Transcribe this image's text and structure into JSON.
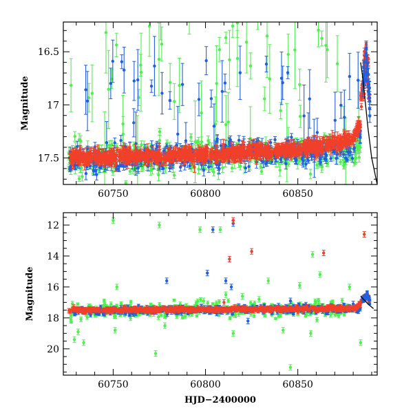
{
  "chart_data": [
    {
      "type": "scatter",
      "panel": "top",
      "title": "",
      "xlabel": "",
      "ylabel": "Magnitude",
      "xlim": [
        60723,
        60893
      ],
      "ylim": [
        17.75,
        16.22
      ],
      "y_inverted": true,
      "x_ticks": [
        60750,
        60800,
        60850
      ],
      "y_ticks": [
        16.5,
        17,
        17.5
      ],
      "x_tick_labels": [
        "60750",
        "60800",
        "60850"
      ],
      "y_tick_labels": [
        "16.5",
        "17",
        "17.5"
      ],
      "series": [
        {
          "color": "#4ef04e",
          "baseline": [
            [
              60726,
              17.52
            ],
            [
              60880,
              17.45
            ],
            [
              60884,
              17.38
            ]
          ],
          "scatter": 0.08,
          "outlier_frac": 0.16
        },
        {
          "color": "#1f5fe0",
          "baseline": [
            [
              60726,
              17.52
            ],
            [
              60880,
              17.42
            ],
            [
              60884,
              17.28
            ]
          ],
          "scatter": 0.06,
          "outlier_frac": 0.1
        },
        {
          "color": "#f0402a",
          "baseline": [
            [
              60726,
              17.5
            ],
            [
              60800,
              17.47
            ],
            [
              60860,
              17.4
            ],
            [
              60880,
              17.32
            ],
            [
              60884,
              17.18
            ]
          ],
          "scatter": 0.03,
          "outlier_frac": 0.0
        }
      ],
      "flare": {
        "x": [
          60884,
          60886,
          60887,
          60888,
          60889
        ],
        "y": [
          17.0,
          16.7,
          16.55,
          16.7,
          16.95
        ]
      },
      "model_curve": {
        "color": "#000000",
        "x": [
          60884,
          60885,
          60886,
          60887,
          60888,
          60890,
          60893
        ],
        "y": [
          16.6,
          16.72,
          16.88,
          17.05,
          17.22,
          17.5,
          17.75
        ]
      }
    },
    {
      "type": "scatter",
      "panel": "bottom",
      "title": "",
      "xlabel": "HJD−2400000",
      "ylabel": "Magnitude",
      "xlim": [
        60723,
        60893
      ],
      "ylim": [
        21.7,
        11.2
      ],
      "y_inverted": true,
      "x_ticks": [
        60750,
        60800,
        60850
      ],
      "y_ticks": [
        12,
        14,
        16,
        18,
        20
      ],
      "x_tick_labels": [
        "60750",
        "60800",
        "60850"
      ],
      "y_tick_labels": [
        "12",
        "14",
        "16",
        "18",
        "20"
      ],
      "series": [
        {
          "color": "#4ef04e",
          "baseline": [
            [
              60726,
              17.55
            ],
            [
              60884,
              17.4
            ]
          ],
          "scatter": 0.25,
          "outliers": [
            [
              60729,
              19.4
            ],
            [
              60731,
              18.9
            ],
            [
              60734,
              19.6
            ],
            [
              60750,
              11.7
            ],
            [
              60752,
              16.0
            ],
            [
              60751,
              18.8
            ],
            [
              60775,
              12.0
            ],
            [
              60773,
              20.3
            ],
            [
              60778,
              18.5
            ],
            [
              60797,
              12.3
            ],
            [
              60799,
              16.9
            ],
            [
              60808,
              12.3
            ],
            [
              60811,
              16.5
            ],
            [
              60815,
              19.0
            ],
            [
              60820,
              16.6
            ],
            [
              60829,
              16.8
            ],
            [
              60834,
              15.6
            ],
            [
              60842,
              18.8
            ],
            [
              60851,
              15.9
            ],
            [
              60857,
              19.0
            ],
            [
              60862,
              15.2
            ],
            [
              60858,
              13.9
            ],
            [
              60878,
              16.0
            ],
            [
              60886,
              12.6
            ],
            [
              60884,
              19.6
            ],
            [
              60846,
              21.2
            ]
          ]
        },
        {
          "color": "#1f5fe0",
          "baseline": [
            [
              60726,
              17.55
            ],
            [
              60884,
              17.4
            ]
          ],
          "scatter": 0.12,
          "outliers": [
            [
              60779,
              15.6
            ],
            [
              60801,
              15.1
            ],
            [
              60804,
              12.3
            ],
            [
              60811,
              15.6
            ],
            [
              60814,
              16.0
            ],
            [
              60815,
              11.9
            ],
            [
              60823,
              18.2
            ],
            [
              60846,
              16.9
            ],
            [
              60880,
              17.1
            ]
          ]
        },
        {
          "color": "#f0402a",
          "baseline": [
            [
              60726,
              17.5
            ],
            [
              60880,
              17.4
            ],
            [
              60884,
              17.2
            ]
          ],
          "scatter": 0.06,
          "outliers": [
            [
              60813,
              14.2
            ],
            [
              60815,
              11.7
            ],
            [
              60825,
              13.7
            ],
            [
              60864,
              13.8
            ],
            [
              60886,
              12.6
            ],
            [
              60810,
              17.0
            ]
          ]
        }
      ],
      "flare": {
        "x": [
          60884,
          60886,
          60887,
          60888,
          60889
        ],
        "y": [
          17.0,
          16.7,
          16.55,
          16.7,
          16.95
        ]
      },
      "model_curve": {
        "color": "#000000",
        "x": [
          60884,
          60886,
          60888,
          60891
        ],
        "y": [
          16.6,
          16.85,
          17.1,
          17.4
        ]
      }
    }
  ]
}
